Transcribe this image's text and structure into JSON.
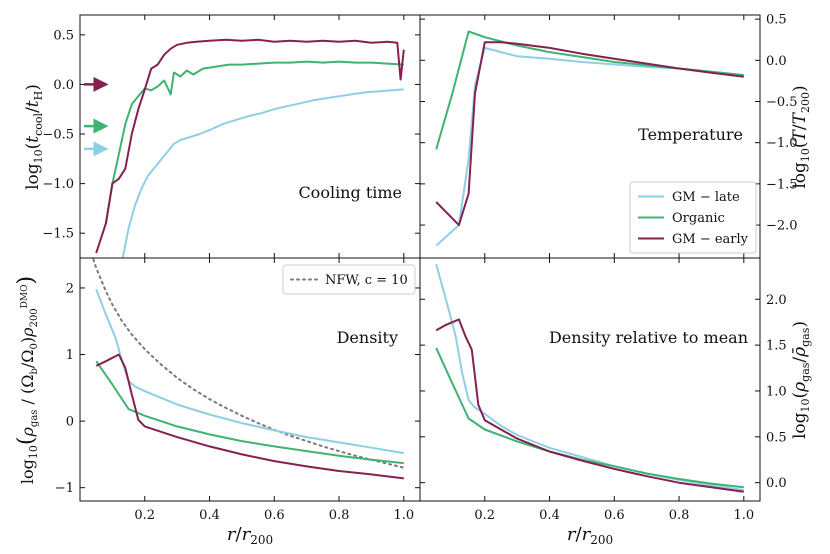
{
  "colors": {
    "gm_late": "#8ecfe6",
    "organic": "#3fb371",
    "gm_early": "#86204f",
    "nfw": "#7a7a7a"
  },
  "chart_data": [
    {
      "id": "cooling",
      "type": "line",
      "annotation": "Cooling time",
      "ylabel": "log10(t_cool / t_H)",
      "xlim": [
        0.0,
        1.05
      ],
      "ylim": [
        -1.75,
        0.7
      ],
      "yticks": [
        -1.5,
        -1.0,
        -0.5,
        0.0,
        0.5
      ],
      "ytick_labels": [
        "−1.5",
        "−1.0",
        "−0.5",
        "0.0",
        "0.5"
      ],
      "arrows": [
        {
          "series": "gm_early",
          "y": 0.0
        },
        {
          "series": "organic",
          "y": -0.42
        },
        {
          "series": "gm_late",
          "y": -0.65
        }
      ],
      "series": [
        {
          "key": "gm_late",
          "x": [
            0.13,
            0.15,
            0.17,
            0.19,
            0.21,
            0.24,
            0.27,
            0.29,
            0.31,
            0.34,
            0.37,
            0.4,
            0.44,
            0.48,
            0.52,
            0.56,
            0.6,
            0.64,
            0.68,
            0.72,
            0.76,
            0.8,
            0.84,
            0.88,
            0.92,
            0.96,
            1.0
          ],
          "y": [
            -1.78,
            -1.45,
            -1.22,
            -1.05,
            -0.92,
            -0.8,
            -0.68,
            -0.6,
            -0.56,
            -0.53,
            -0.5,
            -0.46,
            -0.4,
            -0.36,
            -0.32,
            -0.29,
            -0.25,
            -0.22,
            -0.19,
            -0.16,
            -0.14,
            -0.12,
            -0.1,
            -0.08,
            -0.07,
            -0.06,
            -0.05
          ]
        },
        {
          "key": "organic",
          "x": [
            0.08,
            0.1,
            0.12,
            0.14,
            0.16,
            0.18,
            0.2,
            0.22,
            0.24,
            0.26,
            0.28,
            0.29,
            0.31,
            0.33,
            0.35,
            0.38,
            0.42,
            0.46,
            0.5,
            0.55,
            0.6,
            0.65,
            0.7,
            0.75,
            0.8,
            0.85,
            0.9,
            0.95,
            1.0
          ],
          "y": [
            -1.4,
            -1.0,
            -0.7,
            -0.4,
            -0.2,
            -0.12,
            -0.04,
            -0.06,
            -0.02,
            0.04,
            -0.1,
            0.12,
            0.08,
            0.14,
            0.1,
            0.16,
            0.18,
            0.2,
            0.2,
            0.21,
            0.22,
            0.22,
            0.23,
            0.22,
            0.23,
            0.22,
            0.22,
            0.21,
            0.2
          ]
        },
        {
          "key": "gm_early",
          "x": [
            0.05,
            0.08,
            0.1,
            0.12,
            0.14,
            0.16,
            0.18,
            0.2,
            0.22,
            0.24,
            0.26,
            0.28,
            0.3,
            0.33,
            0.36,
            0.4,
            0.45,
            0.5,
            0.55,
            0.6,
            0.65,
            0.7,
            0.75,
            0.8,
            0.85,
            0.9,
            0.95,
            0.98,
            0.99,
            1.0
          ],
          "y": [
            -1.7,
            -1.4,
            -1.0,
            -0.95,
            -0.85,
            -0.5,
            -0.25,
            -0.05,
            0.16,
            0.2,
            0.3,
            0.36,
            0.4,
            0.42,
            0.43,
            0.44,
            0.45,
            0.44,
            0.45,
            0.43,
            0.44,
            0.43,
            0.44,
            0.43,
            0.44,
            0.42,
            0.43,
            0.42,
            0.05,
            0.35
          ]
        }
      ]
    },
    {
      "id": "temperature",
      "type": "line",
      "annotation": "Temperature",
      "ylabel": "log10(T / T200)",
      "xlim": [
        0.0,
        1.05
      ],
      "ylim": [
        -2.4,
        0.55
      ],
      "yticks": [
        -2.0,
        -1.5,
        -1.0,
        -0.5,
        0.0,
        0.5
      ],
      "ytick_labels": [
        "−2.0",
        "−1.5",
        "−1.0",
        "−0.5",
        "0.0",
        "0.5"
      ],
      "legend": {
        "placement": "lower-right",
        "entries": [
          {
            "series": "gm_late",
            "label": "GM − late"
          },
          {
            "series": "organic",
            "label": "Organic"
          },
          {
            "series": "gm_early",
            "label": "GM − early"
          }
        ]
      },
      "series": [
        {
          "key": "gm_late",
          "x": [
            0.05,
            0.12,
            0.15,
            0.17,
            0.2,
            0.25,
            0.3,
            0.4,
            0.5,
            0.6,
            0.7,
            0.8,
            0.9,
            1.0
          ],
          "y": [
            -2.25,
            -2.0,
            -1.2,
            -0.3,
            0.15,
            0.1,
            0.05,
            0.02,
            -0.02,
            -0.05,
            -0.08,
            -0.1,
            -0.14,
            -0.18
          ]
        },
        {
          "key": "organic",
          "x": [
            0.05,
            0.1,
            0.15,
            0.2,
            0.3,
            0.4,
            0.5,
            0.6,
            0.7,
            0.8,
            0.9,
            1.0
          ],
          "y": [
            -1.08,
            -0.4,
            0.35,
            0.28,
            0.18,
            0.1,
            0.04,
            -0.02,
            -0.06,
            -0.1,
            -0.14,
            -0.18
          ]
        },
        {
          "key": "gm_early",
          "x": [
            0.05,
            0.12,
            0.15,
            0.17,
            0.2,
            0.25,
            0.3,
            0.4,
            0.5,
            0.6,
            0.7,
            0.8,
            0.9,
            1.0
          ],
          "y": [
            -1.72,
            -2.0,
            -1.62,
            -0.4,
            0.22,
            0.22,
            0.2,
            0.15,
            0.08,
            0.02,
            -0.04,
            -0.1,
            -0.15,
            -0.2
          ]
        }
      ]
    },
    {
      "id": "density",
      "type": "line",
      "annotation": "Density",
      "ylabel": "log10( ρ_gas / ((Ω_b/Ω_0) ρ_200^DMO) )",
      "xlabel": "r / r200",
      "xlim": [
        0.0,
        1.05
      ],
      "ylim": [
        -1.2,
        2.45
      ],
      "yticks": [
        -1,
        0,
        1,
        2
      ],
      "ytick_labels": [
        "−1",
        "0",
        "1",
        "2"
      ],
      "xticks": [
        0.2,
        0.4,
        0.6,
        0.8,
        1.0
      ],
      "xtick_labels": [
        "0.2",
        "0.4",
        "0.6",
        "0.8",
        "1.0"
      ],
      "legend": {
        "placement": "upper-right",
        "entries": [
          {
            "series": "nfw",
            "label": "NFW, c = 10"
          }
        ]
      },
      "series": [
        {
          "key": "nfw",
          "dashed": true,
          "x": [
            0.03,
            0.05,
            0.08,
            0.1,
            0.13,
            0.16,
            0.2,
            0.25,
            0.3,
            0.35,
            0.4,
            0.45,
            0.5,
            0.55,
            0.6,
            0.65,
            0.7,
            0.75,
            0.8,
            0.85,
            0.9,
            0.95,
            1.0
          ],
          "y": [
            2.6,
            2.3,
            1.95,
            1.75,
            1.5,
            1.3,
            1.08,
            0.85,
            0.65,
            0.48,
            0.33,
            0.2,
            0.08,
            -0.03,
            -0.13,
            -0.22,
            -0.3,
            -0.38,
            -0.45,
            -0.52,
            -0.58,
            -0.64,
            -0.7
          ]
        },
        {
          "key": "gm_late",
          "x": [
            0.05,
            0.08,
            0.11,
            0.13,
            0.15,
            0.17,
            0.2,
            0.25,
            0.3,
            0.4,
            0.5,
            0.6,
            0.7,
            0.8,
            0.9,
            1.0
          ],
          "y": [
            1.98,
            1.6,
            1.25,
            0.9,
            0.6,
            0.52,
            0.45,
            0.35,
            0.25,
            0.1,
            -0.03,
            -0.14,
            -0.24,
            -0.32,
            -0.4,
            -0.48
          ]
        },
        {
          "key": "organic",
          "x": [
            0.05,
            0.1,
            0.15,
            0.2,
            0.3,
            0.4,
            0.5,
            0.6,
            0.7,
            0.8,
            0.9,
            1.0
          ],
          "y": [
            0.9,
            0.55,
            0.18,
            0.08,
            -0.08,
            -0.2,
            -0.3,
            -0.38,
            -0.45,
            -0.52,
            -0.58,
            -0.63
          ]
        },
        {
          "key": "gm_early",
          "x": [
            0.05,
            0.08,
            0.12,
            0.14,
            0.16,
            0.18,
            0.2,
            0.25,
            0.3,
            0.4,
            0.5,
            0.6,
            0.7,
            0.8,
            0.9,
            1.0
          ],
          "y": [
            0.83,
            0.9,
            1.0,
            0.8,
            0.4,
            0.02,
            -0.08,
            -0.16,
            -0.24,
            -0.38,
            -0.5,
            -0.6,
            -0.68,
            -0.75,
            -0.8,
            -0.86
          ]
        }
      ]
    },
    {
      "id": "density-relative",
      "type": "line",
      "annotation": "Density relative to mean",
      "ylabel": "log10( ρ_gas / ρ̄_gas )",
      "xlabel": "r / r200",
      "xlim": [
        0.0,
        1.05
      ],
      "ylim": [
        -0.2,
        2.45
      ],
      "yticks": [
        0.0,
        0.5,
        1.0,
        1.5,
        2.0
      ],
      "ytick_labels": [
        "0.0",
        "0.5",
        "1.0",
        "1.5",
        "2.0"
      ],
      "xticks": [
        0.2,
        0.4,
        0.6,
        0.8,
        1.0
      ],
      "xtick_labels": [
        "0.2",
        "0.4",
        "0.6",
        "0.8",
        "1.0"
      ],
      "series": [
        {
          "key": "gm_late",
          "x": [
            0.05,
            0.08,
            0.11,
            0.13,
            0.15,
            0.17,
            0.2,
            0.25,
            0.3,
            0.4,
            0.5,
            0.6,
            0.7,
            0.8,
            0.9,
            1.0
          ],
          "y": [
            2.38,
            2.0,
            1.6,
            1.2,
            0.9,
            0.82,
            0.75,
            0.62,
            0.52,
            0.38,
            0.28,
            0.18,
            0.1,
            0.03,
            -0.03,
            -0.08
          ]
        },
        {
          "key": "organic",
          "x": [
            0.05,
            0.1,
            0.15,
            0.2,
            0.3,
            0.4,
            0.5,
            0.6,
            0.7,
            0.8,
            0.9,
            1.0
          ],
          "y": [
            1.47,
            1.08,
            0.7,
            0.58,
            0.45,
            0.34,
            0.25,
            0.18,
            0.1,
            0.04,
            -0.01,
            -0.05
          ]
        },
        {
          "key": "gm_early",
          "x": [
            0.05,
            0.08,
            0.12,
            0.14,
            0.16,
            0.18,
            0.2,
            0.25,
            0.3,
            0.4,
            0.5,
            0.6,
            0.7,
            0.8,
            0.9,
            1.0
          ],
          "y": [
            1.66,
            1.72,
            1.78,
            1.6,
            1.45,
            0.85,
            0.68,
            0.58,
            0.48,
            0.34,
            0.24,
            0.15,
            0.07,
            0.0,
            -0.05,
            -0.1
          ]
        }
      ]
    }
  ]
}
